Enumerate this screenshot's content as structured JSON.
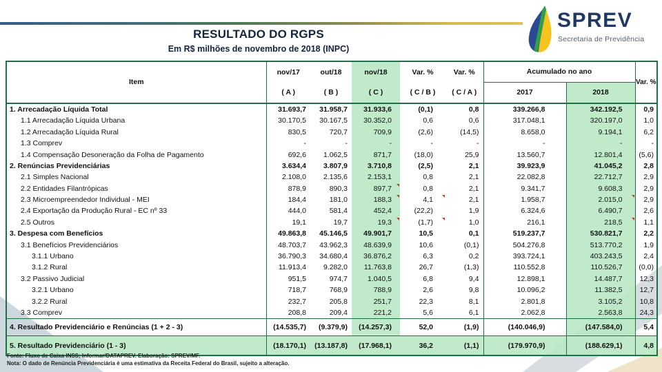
{
  "page": {
    "title": "RESULTADO DO RGPS",
    "subtitle": "Em R$ milhões de novembro de 2018 (INPC)"
  },
  "logo": {
    "name": "SPREV",
    "tagline": "Secretaria de Previdência",
    "colors": {
      "blue": "#2b4a94",
      "green": "#2f9e4d",
      "yellow": "#f5c41f",
      "navy": "#1f3864"
    }
  },
  "theme": {
    "green_fill": "#c6efce",
    "border_green": "#1f7145",
    "accent_gradient": [
      "#33608f",
      "#4d7b52",
      "#d9b84e"
    ]
  },
  "table": {
    "header": {
      "item": "Item",
      "col_a": [
        "nov/17",
        "( A )"
      ],
      "col_b": [
        "out/18",
        "( B )"
      ],
      "col_c": [
        "nov/18",
        "( C )"
      ],
      "col_cb": [
        "Var. %",
        "( C / B )"
      ],
      "col_ca": [
        "Var. %",
        "( C / A )"
      ],
      "acumulado": "Acumulado no ano",
      "y2017": "2017",
      "y2018": "2018",
      "var": "Var. %"
    },
    "rows": [
      {
        "label": "1. Arrecadação Líquida Total",
        "level": 1,
        "values": [
          "31.693,7",
          "31.958,7",
          "31.933,6",
          "(0,1)",
          "0,8",
          "339.266,8",
          "342.192,5",
          "0,9"
        ],
        "markers": []
      },
      {
        "label": "1.1 Arrecadação Líquida Urbana",
        "level": 2,
        "values": [
          "30.170,5",
          "30.167,5",
          "30.352,0",
          "0,6",
          "0,6",
          "317.048,1",
          "320.197,0",
          "1,0"
        ],
        "markers": []
      },
      {
        "label": "1.2 Arrecadação Líquida Rural",
        "level": 2,
        "values": [
          "830,5",
          "720,7",
          "709,9",
          "(2,6)",
          "(14,5)",
          "8.658,0",
          "9.194,1",
          "6,2"
        ],
        "markers": []
      },
      {
        "label": "1.3 Comprev",
        "level": 2,
        "values": [
          "-",
          "-",
          "-",
          "-",
          "-",
          "-",
          "-",
          "-"
        ],
        "markers": []
      },
      {
        "label": "1.4 Compensação Desoneração da Folha de Pagamento",
        "level": 2,
        "values": [
          "692,6",
          "1.062,5",
          "871,7",
          "(18,0)",
          "25,9",
          "13.560,7",
          "12.801,4",
          "(5,6)"
        ],
        "markers": []
      },
      {
        "label": "2. Renúncias Previdenciárias",
        "level": 1,
        "values": [
          "3.634,4",
          "3.807,9",
          "3.710,8",
          "(2,5)",
          "2,1",
          "39.923,9",
          "41.045,2",
          "2,8"
        ],
        "markers": []
      },
      {
        "label": "2.1 Simples Nacional",
        "level": 2,
        "values": [
          "2.108,0",
          "2.135,6",
          "2.153,1",
          "0,8",
          "2,1",
          "22.082,8",
          "22.712,7",
          "2,9"
        ],
        "markers": []
      },
      {
        "label": "2.2 Entidades Filantrópicas",
        "level": 2,
        "values": [
          "878,9",
          "890,3",
          "897,7",
          "0,8",
          "2,1",
          "9.341,7",
          "9.608,3",
          "2,9"
        ],
        "markers": [
          2
        ]
      },
      {
        "label": "2.3 Microempreendedor Individual - MEI",
        "level": 2,
        "values": [
          "184,4",
          "181,0",
          "188,3",
          "4,1",
          "2,1",
          "1.958,7",
          "2.015,0",
          "2,9"
        ],
        "markers": [
          2,
          3,
          6
        ]
      },
      {
        "label": "2.4 Exportação da Produção Rural - EC nº 33",
        "level": 2,
        "values": [
          "444,0",
          "581,4",
          "452,4",
          "(22,2)",
          "1,9",
          "6.324,6",
          "6.490,7",
          "2,6"
        ],
        "markers": []
      },
      {
        "label": "2.5 Outros",
        "level": 2,
        "values": [
          "19,1",
          "19,7",
          "19,3",
          "(1,7)",
          "1,0",
          "216,1",
          "218,5",
          "1,1"
        ],
        "markers": [
          2,
          3,
          6
        ]
      },
      {
        "label": "3. Despesa com Benefícios",
        "level": 1,
        "values": [
          "49.863,8",
          "45.146,5",
          "49.901,7",
          "10,5",
          "0,1",
          "519.237,7",
          "530.821,7",
          "2,2"
        ],
        "markers": []
      },
      {
        "label": "3.1 Benefícios Previdenciários",
        "level": 2,
        "values": [
          "48.703,7",
          "43.962,3",
          "48.639,9",
          "10,6",
          "(0,1)",
          "504.276,8",
          "513.770,2",
          "1,9"
        ],
        "markers": []
      },
      {
        "label": "3.1.1 Urbano",
        "level": 3,
        "values": [
          "36.790,3",
          "34.680,4",
          "36.876,2",
          "6,3",
          "0,2",
          "393.724,1",
          "403.243,5",
          "2,4"
        ],
        "markers": []
      },
      {
        "label": "3.1.2 Rural",
        "level": 3,
        "values": [
          "11.913,4",
          "9.282,0",
          "11.763,8",
          "26,7",
          "(1,3)",
          "110.552,8",
          "110.526,7",
          "(0,0)"
        ],
        "markers": []
      },
      {
        "label": "3.2 Passivo Judicial",
        "level": 2,
        "values": [
          "951,5",
          "974,7",
          "1.040,5",
          "6,8",
          "9,4",
          "12.898,1",
          "14.487,7",
          "12,3"
        ],
        "markers": []
      },
      {
        "label": "3.2.1 Urbano",
        "level": 3,
        "values": [
          "718,7",
          "768,9",
          "788,9",
          "2,6",
          "9,8",
          "10.096,2",
          "11.382,5",
          "12,7"
        ],
        "markers": []
      },
      {
        "label": "3.2.2 Rural",
        "level": 3,
        "values": [
          "232,7",
          "205,8",
          "251,7",
          "22,3",
          "8,1",
          "2.801,8",
          "3.105,2",
          "10,8"
        ],
        "markers": []
      },
      {
        "label": "3.3 Comprev",
        "level": 2,
        "values": [
          "208,8",
          "209,4",
          "221,2",
          "5,6",
          "6,1",
          "2.062,8",
          "2.563,8",
          "24,3"
        ],
        "markers": []
      },
      {
        "label": "4. Resultado Previdenciário e Renúncias (1 + 2 - 3)",
        "level": 1,
        "total": true,
        "values": [
          "(14.535,7)",
          "(9.379,9)",
          "(14.257,3)",
          "52,0",
          "(1,9)",
          "(140.046,9)",
          "(147.584,0)",
          "5,4"
        ],
        "markers": []
      },
      {
        "label": "5. Resultado Previdenciário (1 - 3)",
        "level": 1,
        "total": true,
        "green_row": true,
        "values": [
          "(18.170,1)",
          "(13.187,8)",
          "(17.968,1)",
          "36,2",
          "(1,1)",
          "(179.970,9)",
          "(188.629,1)",
          "4,8"
        ],
        "markers": []
      }
    ]
  },
  "footer": {
    "fonte": "Fonte: Fluxo de Caixa INSS; Informar/DATAPREV.  Elaboração: SPREV/MF.",
    "nota": "Nota: O dado de Renúncia Previdenciária é uma estimativa da Receita Federal do Brasil, sujeito a alteração."
  }
}
